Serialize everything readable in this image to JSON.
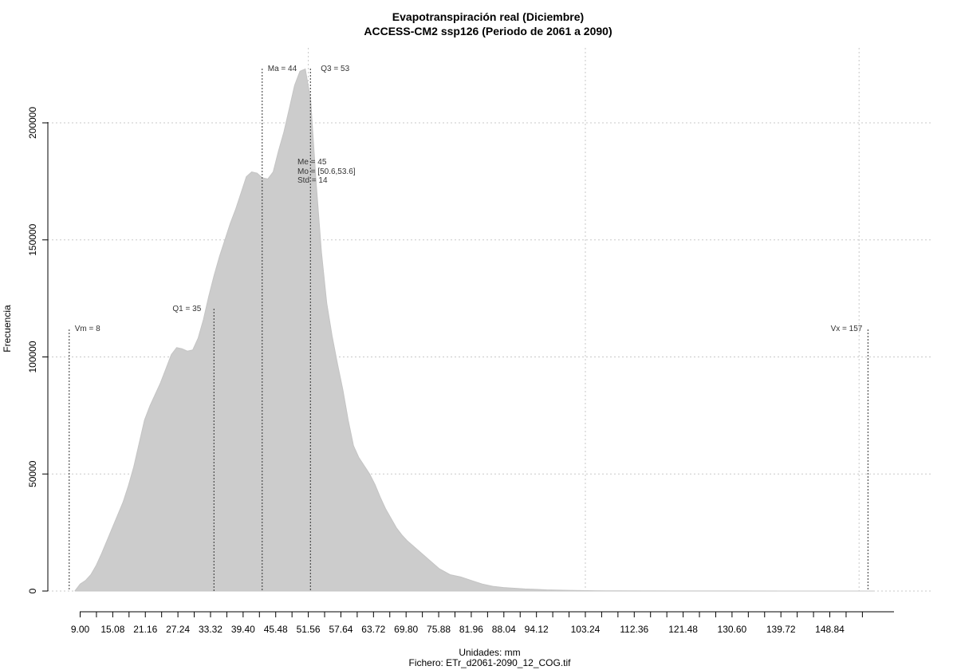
{
  "chart_data": {
    "type": "area",
    "title": "Evapotranspiración real (Diciembre)",
    "subtitle": "ACCESS-CM2 ssp126 (Periodo de 2061 a 2090)",
    "xlabel": "Unidades: mm",
    "ylabel": "Frecuencia",
    "caption": "Fichero: ETr_d2061-2090_12_COG.tif",
    "xlim": [
      8,
      160
    ],
    "ylim": [
      0,
      225000
    ],
    "x_tick_labels": [
      "9.00",
      "15.08",
      "21.16",
      "27.24",
      "33.32",
      "39.40",
      "45.48",
      "51.56",
      "57.64",
      "63.72",
      "69.80",
      "75.88",
      "81.96",
      "88.04",
      "94.12",
      "103.24",
      "112.36",
      "121.48",
      "130.60",
      "139.72",
      "148.84"
    ],
    "x_minor_step": 3.04,
    "y_ticks": [
      0,
      50000,
      100000,
      150000,
      200000
    ],
    "y_tick_labels": [
      "0",
      "50000",
      "100000",
      "150000",
      "200000"
    ],
    "grid": true,
    "x_grid": [
      51.56,
      103.24,
      154.3
    ],
    "fill_color": "#cccccc",
    "series": [
      {
        "x": [
          8,
          9,
          10,
          11,
          12,
          13,
          14,
          15,
          16,
          17,
          18,
          19,
          20,
          21,
          22,
          23,
          24,
          25,
          26,
          27,
          28,
          29,
          30,
          31,
          32,
          33,
          34,
          35,
          36,
          37,
          38,
          39,
          40,
          41,
          42,
          43,
          44,
          45,
          46,
          47,
          48,
          49,
          50,
          51,
          52,
          53,
          54,
          55,
          56,
          57,
          58,
          59,
          60,
          61,
          62,
          63,
          64,
          65,
          66,
          67,
          68,
          69,
          70,
          72,
          74,
          76,
          78,
          80,
          82,
          84,
          86,
          88,
          90,
          92,
          94,
          96,
          100,
          105,
          110,
          120,
          130,
          140,
          150,
          157
        ],
        "y": [
          0,
          3000,
          4500,
          7000,
          11000,
          16000,
          21500,
          27000,
          32500,
          38000,
          45000,
          53000,
          63000,
          73000,
          79000,
          84000,
          89000,
          95000,
          101000,
          104000,
          103500,
          102500,
          103000,
          108000,
          116000,
          126000,
          135000,
          143000,
          150000,
          157000,
          163000,
          170000,
          177000,
          179000,
          178500,
          176500,
          176000,
          179000,
          188000,
          196000,
          206000,
          216000,
          222000,
          223000,
          210000,
          175000,
          145000,
          123000,
          109000,
          97000,
          86000,
          73000,
          62000,
          57000,
          53500,
          50000,
          45500,
          40000,
          35000,
          31000,
          27000,
          24000,
          21500,
          17500,
          13500,
          9500,
          7000,
          6000,
          4500,
          3000,
          2000,
          1500,
          1200,
          900,
          700,
          500,
          300,
          150,
          80,
          40,
          20,
          10,
          5,
          0
        ]
      }
    ],
    "markers": [
      {
        "name": "Vm",
        "value": 8,
        "label": "Vm = 8"
      },
      {
        "name": "Q1",
        "value": 35,
        "label": "Q1 = 35"
      },
      {
        "name": "Ma",
        "value": 44,
        "label": "Ma = 44"
      },
      {
        "name": "Q3",
        "value": 53,
        "label": "Q3 = 53"
      },
      {
        "name": "Vx",
        "value": 157,
        "label": "Vx = 157"
      }
    ],
    "stats": [
      "Me = 45",
      "Mo = [50.6,53.6]",
      "Std = 14"
    ]
  }
}
